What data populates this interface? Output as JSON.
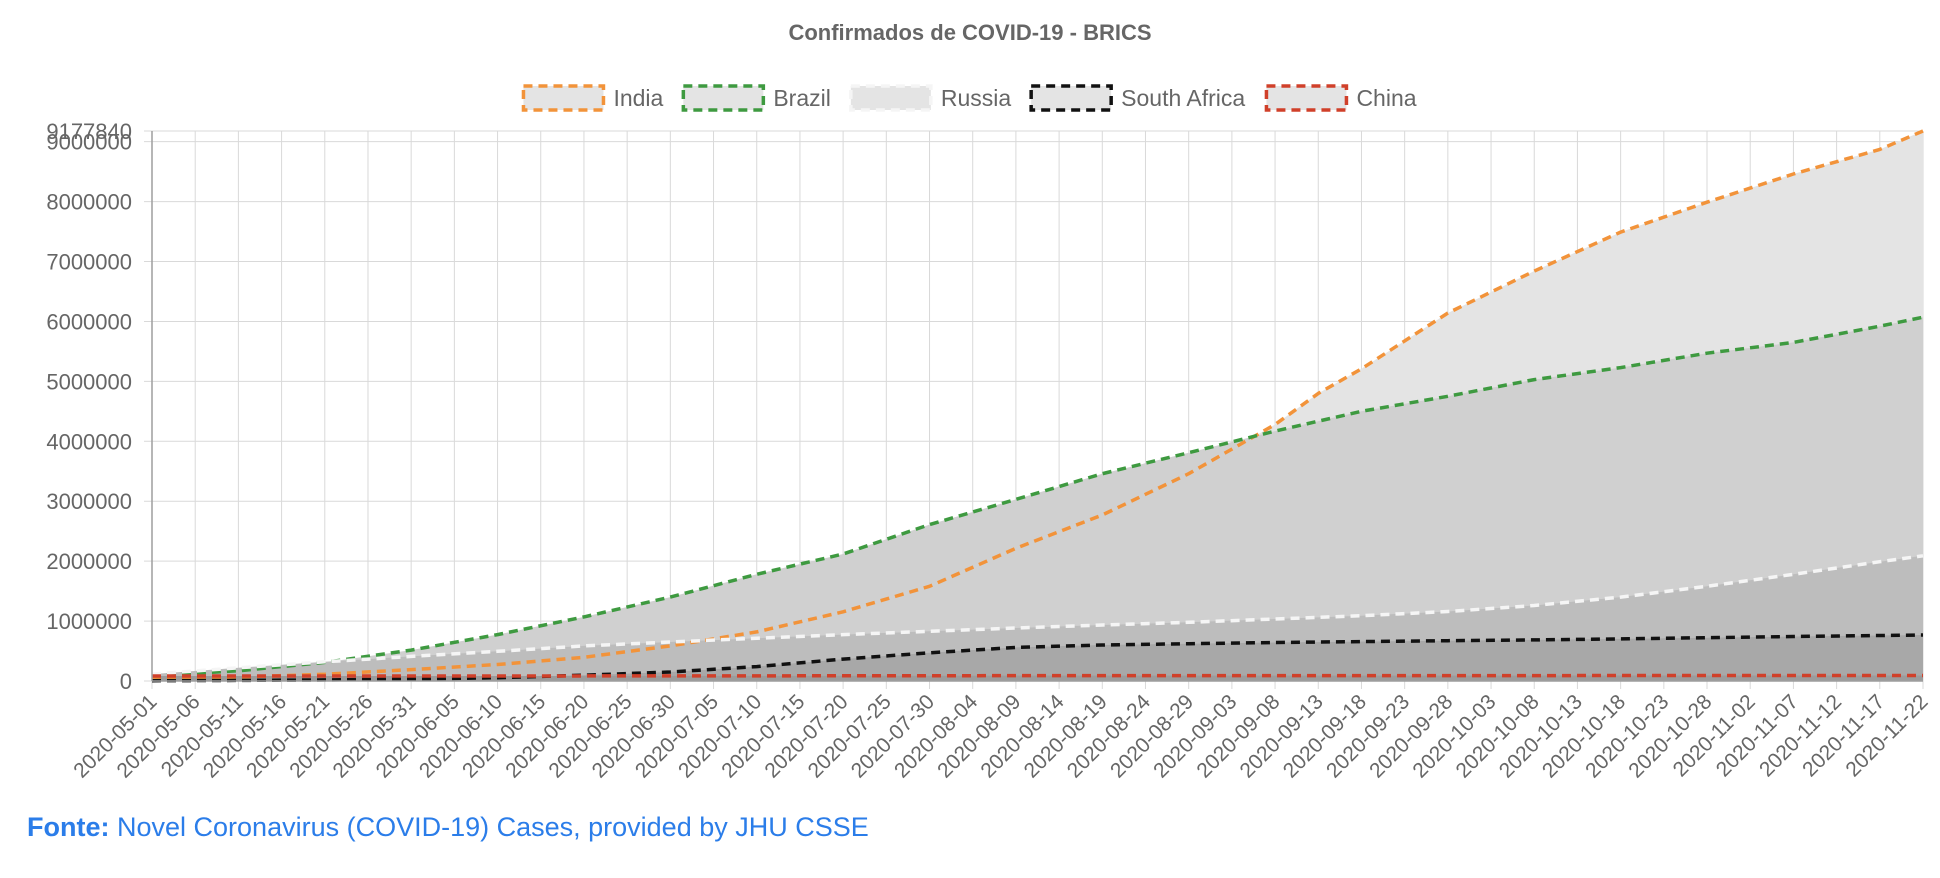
{
  "source": {
    "label": "Fonte:",
    "text": "Novel Coronavirus (COVID-19) Cases, provided by JHU CSSE"
  },
  "chart_data": {
    "type": "area",
    "title": "Confirmados de COVID-19 - BRICS",
    "xlabel": "",
    "ylabel": "",
    "ylim": [
      0,
      9177840
    ],
    "y_ticks": [
      0,
      1000000,
      2000000,
      3000000,
      4000000,
      5000000,
      6000000,
      7000000,
      8000000,
      9000000,
      9177840
    ],
    "x_ticks": [
      "2020-05-01",
      "2020-05-06",
      "2020-05-11",
      "2020-05-16",
      "2020-05-21",
      "2020-05-26",
      "2020-05-31",
      "2020-06-05",
      "2020-06-10",
      "2020-06-15",
      "2020-06-20",
      "2020-06-25",
      "2020-06-30",
      "2020-07-05",
      "2020-07-10",
      "2020-07-15",
      "2020-07-20",
      "2020-07-25",
      "2020-07-30",
      "2020-08-04",
      "2020-08-09",
      "2020-08-14",
      "2020-08-19",
      "2020-08-24",
      "2020-08-29",
      "2020-09-03",
      "2020-09-08",
      "2020-09-13",
      "2020-09-18",
      "2020-09-23",
      "2020-09-28",
      "2020-10-03",
      "2020-10-08",
      "2020-10-13",
      "2020-10-18",
      "2020-10-23",
      "2020-10-28",
      "2020-11-02",
      "2020-11-07",
      "2020-11-12",
      "2020-11-17",
      "2020-11-22"
    ],
    "x_range": [
      "2020-05-01",
      "2020-11-22"
    ],
    "grid": true,
    "legend_position": "top",
    "series": [
      {
        "name": "India",
        "color": "#f2933a",
        "fill": "#e4e4e4",
        "points": [
          [
            "2020-05-01",
            35000
          ],
          [
            "2020-05-11",
            67000
          ],
          [
            "2020-05-21",
            112000
          ],
          [
            "2020-05-31",
            190000
          ],
          [
            "2020-06-10",
            276000
          ],
          [
            "2020-06-20",
            395000
          ],
          [
            "2020-06-30",
            585000
          ],
          [
            "2020-07-10",
            820000
          ],
          [
            "2020-07-20",
            1155000
          ],
          [
            "2020-07-30",
            1580000
          ],
          [
            "2020-08-09",
            2215000
          ],
          [
            "2020-08-19",
            2770000
          ],
          [
            "2020-08-29",
            3460000
          ],
          [
            "2020-09-08",
            4280000
          ],
          [
            "2020-09-13",
            4800000
          ],
          [
            "2020-09-18",
            5210000
          ],
          [
            "2020-09-28",
            6140000
          ],
          [
            "2020-10-08",
            6840000
          ],
          [
            "2020-10-18",
            7490000
          ],
          [
            "2020-10-28",
            7990000
          ],
          [
            "2020-11-07",
            8460000
          ],
          [
            "2020-11-17",
            8870000
          ],
          [
            "2020-11-22",
            9177840
          ]
        ]
      },
      {
        "name": "Brazil",
        "color": "#3e9a40",
        "fill": "#d0d0d0",
        "points": [
          [
            "2020-05-01",
            92000
          ],
          [
            "2020-05-11",
            170000
          ],
          [
            "2020-05-21",
            310000
          ],
          [
            "2020-05-31",
            515000
          ],
          [
            "2020-06-10",
            775000
          ],
          [
            "2020-06-20",
            1070000
          ],
          [
            "2020-06-30",
            1400000
          ],
          [
            "2020-07-10",
            1780000
          ],
          [
            "2020-07-20",
            2120000
          ],
          [
            "2020-07-30",
            2610000
          ],
          [
            "2020-08-09",
            3030000
          ],
          [
            "2020-08-19",
            3460000
          ],
          [
            "2020-08-29",
            3810000
          ],
          [
            "2020-09-08",
            4170000
          ],
          [
            "2020-09-18",
            4500000
          ],
          [
            "2020-09-28",
            4750000
          ],
          [
            "2020-10-08",
            5030000
          ],
          [
            "2020-10-18",
            5230000
          ],
          [
            "2020-10-28",
            5470000
          ],
          [
            "2020-11-07",
            5650000
          ],
          [
            "2020-11-17",
            5920000
          ],
          [
            "2020-11-22",
            6071000
          ]
        ]
      },
      {
        "name": "Russia",
        "color": "#f5f5f5",
        "fill": "#bdbdbd",
        "points": [
          [
            "2020-05-01",
            115000
          ],
          [
            "2020-05-11",
            220000
          ],
          [
            "2020-05-21",
            320000
          ],
          [
            "2020-05-31",
            410000
          ],
          [
            "2020-06-10",
            495000
          ],
          [
            "2020-06-20",
            585000
          ],
          [
            "2020-06-30",
            650000
          ],
          [
            "2020-07-10",
            715000
          ],
          [
            "2020-07-20",
            775000
          ],
          [
            "2020-07-30",
            830000
          ],
          [
            "2020-08-09",
            885000
          ],
          [
            "2020-08-19",
            935000
          ],
          [
            "2020-08-29",
            980000
          ],
          [
            "2020-09-08",
            1035000
          ],
          [
            "2020-09-18",
            1090000
          ],
          [
            "2020-09-28",
            1160000
          ],
          [
            "2020-10-08",
            1260000
          ],
          [
            "2020-10-18",
            1400000
          ],
          [
            "2020-10-28",
            1580000
          ],
          [
            "2020-11-07",
            1780000
          ],
          [
            "2020-11-17",
            1990000
          ],
          [
            "2020-11-22",
            2090000
          ]
        ]
      },
      {
        "name": "South Africa",
        "color": "#111111",
        "fill": "#a8a8a8",
        "points": [
          [
            "2020-05-01",
            5600
          ],
          [
            "2020-05-11",
            10500
          ],
          [
            "2020-05-21",
            19000
          ],
          [
            "2020-05-31",
            32000
          ],
          [
            "2020-06-10",
            55000
          ],
          [
            "2020-06-20",
            97000
          ],
          [
            "2020-06-30",
            150000
          ],
          [
            "2020-07-10",
            240000
          ],
          [
            "2020-07-20",
            365000
          ],
          [
            "2020-07-30",
            470000
          ],
          [
            "2020-08-09",
            560000
          ],
          [
            "2020-08-19",
            600000
          ],
          [
            "2020-08-29",
            622000
          ],
          [
            "2020-09-08",
            642000
          ],
          [
            "2020-09-18",
            658000
          ],
          [
            "2020-09-28",
            672000
          ],
          [
            "2020-10-08",
            686000
          ],
          [
            "2020-10-18",
            703000
          ],
          [
            "2020-10-28",
            722000
          ],
          [
            "2020-11-07",
            742000
          ],
          [
            "2020-11-17",
            760000
          ],
          [
            "2020-11-22",
            768000
          ]
        ]
      },
      {
        "name": "China",
        "color": "#d0402a",
        "fill": "#9b9b9b",
        "points": [
          [
            "2020-05-01",
            83959
          ],
          [
            "2020-06-01",
            84154
          ],
          [
            "2020-07-01",
            84830
          ],
          [
            "2020-08-01",
            87900
          ],
          [
            "2020-09-01",
            89900
          ],
          [
            "2020-10-01",
            90500
          ],
          [
            "2020-11-01",
            91500
          ],
          [
            "2020-11-22",
            92240
          ]
        ]
      }
    ]
  }
}
